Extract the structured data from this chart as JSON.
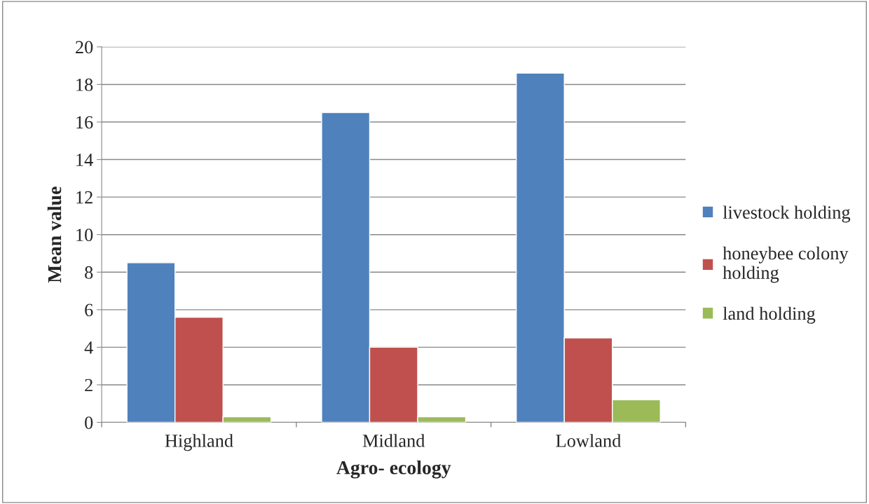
{
  "chart_data": {
    "type": "bar",
    "xlabel": "Agro- ecology",
    "ylabel": "Mean value",
    "categories": [
      "Highland",
      "Midland",
      "Lowland"
    ],
    "series": [
      {
        "name": "livestock holding",
        "color": "#4f81bd",
        "values": [
          8.5,
          16.5,
          18.6
        ]
      },
      {
        "name": "honeybee colony\nholding",
        "color": "#c0504d",
        "values": [
          5.6,
          4.0,
          4.5
        ]
      },
      {
        "name": "land holding",
        "color": "#9bbb59",
        "values": [
          0.3,
          0.3,
          1.2
        ]
      }
    ],
    "ylim": [
      0,
      20
    ],
    "yticks": [
      0,
      2,
      4,
      6,
      8,
      10,
      12,
      14,
      16,
      18,
      20
    ],
    "grid": "y",
    "legend": "right"
  }
}
